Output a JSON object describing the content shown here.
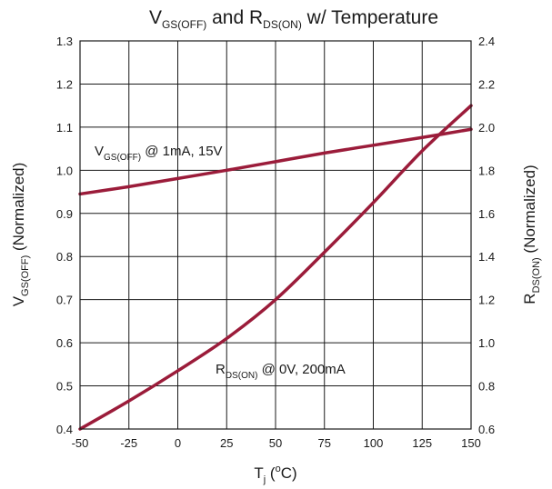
{
  "chart_data": {
    "type": "line",
    "title": {
      "main": "V",
      "sub": "GS(OFF)",
      "mid": " and R",
      "sub2": "DS(ON)",
      "end": " w/ Temperature"
    },
    "xlabel": {
      "main": "T",
      "sub": "j",
      "mid": " (",
      "sup": "o",
      "end": "C)"
    },
    "ylabel_left": {
      "main": "V",
      "sub": "GS(OFF)",
      "end": " (Normalized)"
    },
    "ylabel_right": {
      "main": "R",
      "sub": "DS(ON)",
      "end": " (Normalized)"
    },
    "x_ticks": [
      "-50",
      "-25",
      "0",
      "25",
      "50",
      "75",
      "100",
      "125",
      "150"
    ],
    "y_left_ticks": [
      "0.4",
      "0.5",
      "0.6",
      "0.7",
      "0.8",
      "0.9",
      "1.0",
      "1.1",
      "1.2",
      "1.3"
    ],
    "y_right_ticks": [
      "0.6",
      "0.8",
      "1.0",
      "1.2",
      "1.4",
      "1.6",
      "1.8",
      "2.0",
      "2.2",
      "2.4"
    ],
    "xlim": [
      -50,
      150
    ],
    "ylim_left": [
      0.4,
      1.3
    ],
    "ylim_right": [
      0.6,
      2.4
    ],
    "grid": true,
    "series_color": "#9b1c3a",
    "series": [
      {
        "axis": "left",
        "label": {
          "main": "V",
          "sub": "GS(OFF)",
          "end": " @ 1mA, 15V"
        },
        "x": [
          -50,
          -25,
          0,
          25,
          50,
          75,
          100,
          125,
          150
        ],
        "y": [
          0.945,
          0.962,
          0.981,
          1.0,
          1.02,
          1.04,
          1.058,
          1.076,
          1.095
        ]
      },
      {
        "axis": "right",
        "label": {
          "main": "R",
          "sub": "DS(ON)",
          "end": " @ 0V, 200mA"
        },
        "x": [
          -50,
          -25,
          0,
          25,
          50,
          75,
          100,
          125,
          150
        ],
        "y": [
          0.6,
          0.73,
          0.87,
          1.02,
          1.2,
          1.42,
          1.65,
          1.89,
          2.1
        ]
      }
    ]
  }
}
